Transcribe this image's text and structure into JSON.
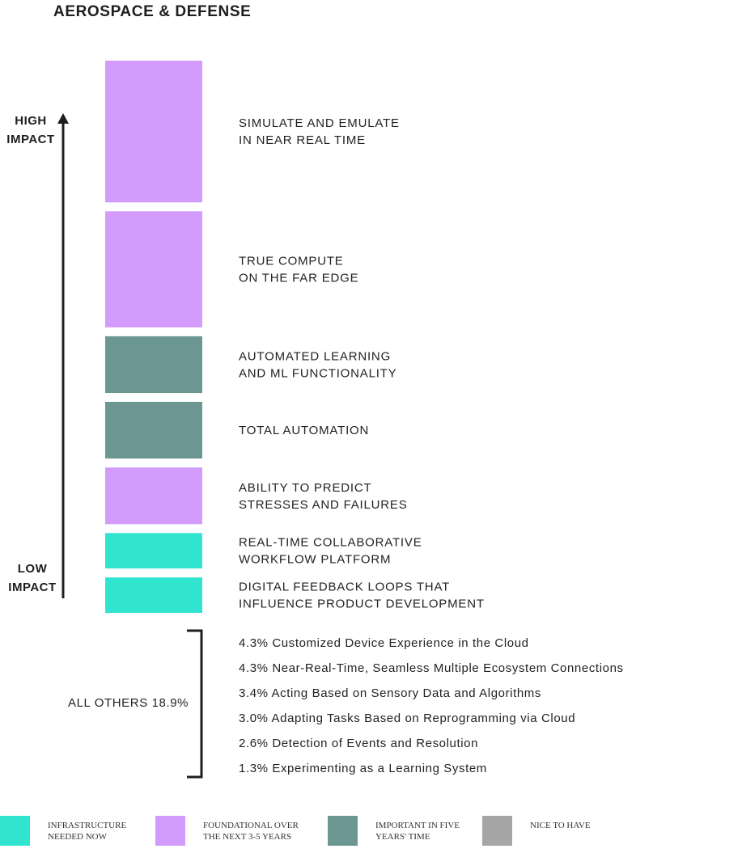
{
  "title": "AEROSPACE & DEFENSE",
  "axis": {
    "high_line1": "HIGH",
    "high_line2": "IMPACT",
    "low_line1": "LOW",
    "low_line2": "IMPACT"
  },
  "colors": {
    "infrastructure": "#31e4d0",
    "foundational": "#d29bfc",
    "important": "#6b9692",
    "nice": "#a6a6a6",
    "axis": "#1e1e1e"
  },
  "chart_data": {
    "type": "bar",
    "orientation": "vertical-stack",
    "categories": [
      "SIMULATE AND EMULATE\nIN NEAR REAL TIME",
      "TRUE COMPUTE\nON THE FAR EDGE",
      "AUTOMATED LEARNING\nAND ML FUNCTIONALITY",
      "TOTAL AUTOMATION",
      "ABILITY TO PREDICT\nSTRESSES AND FAILURES",
      "REAL-TIME COLLABORATIVE\nWORKFLOW PLATFORM",
      "DIGITAL FEEDBACK LOOPS THAT\nINFLUENCE PRODUCT DEVELOPMENT"
    ],
    "values": [
      16.0,
      13.1,
      6.4,
      6.4,
      6.4,
      4.0,
      4.0
    ],
    "color_groups": [
      "foundational",
      "foundational",
      "important",
      "important",
      "foundational",
      "infrastructure",
      "infrastructure"
    ],
    "others": {
      "label": "ALL OTHERS 18.9%",
      "items": [
        "4.3% Customized Device Experience in the Cloud",
        "4.3% Near-Real-Time, Seamless Multiple Ecosystem Connections",
        "3.4% Acting Based on Sensory Data and Algorithms",
        "3.0% Adapting Tasks Based on Reprogramming via Cloud",
        "2.6% Detection of Events and Resolution",
        "1.3% Experimenting as a Learning System"
      ]
    },
    "legend": [
      {
        "key": "infrastructure",
        "label": "INFRASTRUCTURE NEEDED NOW"
      },
      {
        "key": "foundational",
        "label": "FOUNDATIONAL OVER THE NEXT 3-5 YEARS"
      },
      {
        "key": "important",
        "label": "IMPORTANT IN FIVE YEARS' TIME"
      },
      {
        "key": "nice",
        "label": "NICE TO HAVE"
      }
    ]
  }
}
